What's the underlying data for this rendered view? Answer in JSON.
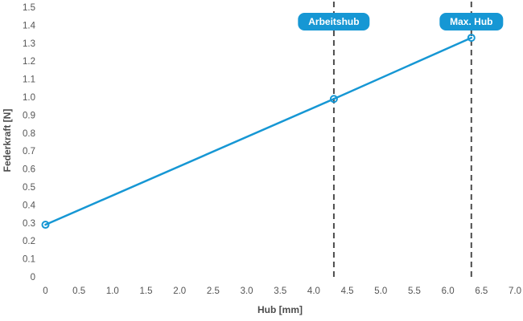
{
  "colors": {
    "accent_blue": "#1697d4",
    "dash_gray": "#4d4d4d",
    "tick_gray": "#545454",
    "badge_text": "#ffffff",
    "background": "#ffffff"
  },
  "chart_data": {
    "type": "line",
    "title": "",
    "xlabel": "Hub [mm]",
    "ylabel": "Federkraft [N]",
    "xlim": [
      0,
      7.0
    ],
    "ylim": [
      0,
      1.5
    ],
    "grid": false,
    "legend": "none",
    "x_ticks": [
      {
        "value": 0,
        "label": "0"
      },
      {
        "value": 0.5,
        "label": "0.5"
      },
      {
        "value": 1.0,
        "label": "1.0"
      },
      {
        "value": 1.5,
        "label": "1.5"
      },
      {
        "value": 2.0,
        "label": "2.0"
      },
      {
        "value": 2.5,
        "label": "2.5"
      },
      {
        "value": 3.0,
        "label": "3.0"
      },
      {
        "value": 3.5,
        "label": "3.5"
      },
      {
        "value": 4.0,
        "label": "4.0"
      },
      {
        "value": 4.5,
        "label": "4.5"
      },
      {
        "value": 5.0,
        "label": "5.0"
      },
      {
        "value": 5.5,
        "label": "5.5"
      },
      {
        "value": 6.0,
        "label": "6.0"
      },
      {
        "value": 6.5,
        "label": "6.5"
      },
      {
        "value": 7.0,
        "label": "7.0"
      }
    ],
    "y_ticks": [
      {
        "value": 0,
        "label": "0"
      },
      {
        "value": 0.1,
        "label": "0.1"
      },
      {
        "value": 0.2,
        "label": "0.2"
      },
      {
        "value": 0.3,
        "label": "0.3"
      },
      {
        "value": 0.4,
        "label": "0.4"
      },
      {
        "value": 0.5,
        "label": "0.5"
      },
      {
        "value": 0.6,
        "label": "0.6"
      },
      {
        "value": 0.7,
        "label": "0.7"
      },
      {
        "value": 0.8,
        "label": "0.8"
      },
      {
        "value": 0.9,
        "label": "0.9"
      },
      {
        "value": 1.0,
        "label": "1.0"
      },
      {
        "value": 1.1,
        "label": "1.1"
      },
      {
        "value": 1.2,
        "label": "1.2"
      },
      {
        "value": 1.3,
        "label": "1.3"
      },
      {
        "value": 1.4,
        "label": "1.4"
      },
      {
        "value": 1.5,
        "label": "1.5"
      }
    ],
    "series": [
      {
        "name": "Federkraft",
        "color": "#1697d4",
        "marker": "open-circle",
        "points": [
          {
            "x": 0,
            "y": 0.29
          },
          {
            "x": 4.3,
            "y": 0.99
          },
          {
            "x": 6.35,
            "y": 1.33
          }
        ]
      }
    ],
    "annotations": [
      {
        "id": "arbeitshub",
        "label": "Arbeitshub",
        "x": 4.3,
        "style": "vline-dashed-badge"
      },
      {
        "id": "max-hub",
        "label": "Max. Hub",
        "x": 6.35,
        "style": "vline-dashed-badge"
      }
    ]
  }
}
